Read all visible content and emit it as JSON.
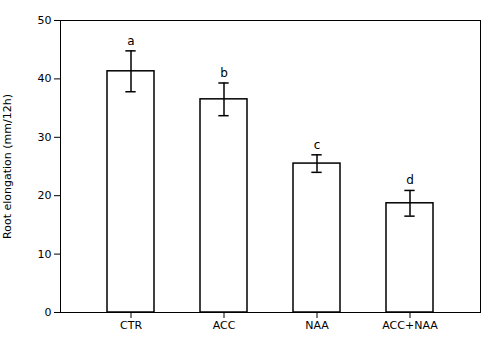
{
  "chart_data": {
    "type": "bar",
    "categories": [
      "CTR",
      "ACC",
      "NAA",
      "ACC+NAA"
    ],
    "values": [
      41.3,
      36.5,
      25.5,
      18.7
    ],
    "errors": [
      3.5,
      2.8,
      1.5,
      2.2
    ],
    "annotations": [
      "a",
      "b",
      "c",
      "d"
    ],
    "color": "#ffffff",
    "ylabel": "Root elongation (mm/12h)",
    "ylim": [
      0,
      50
    ],
    "yticks": [
      0,
      10,
      20,
      30,
      40,
      50
    ],
    "grid": false
  }
}
